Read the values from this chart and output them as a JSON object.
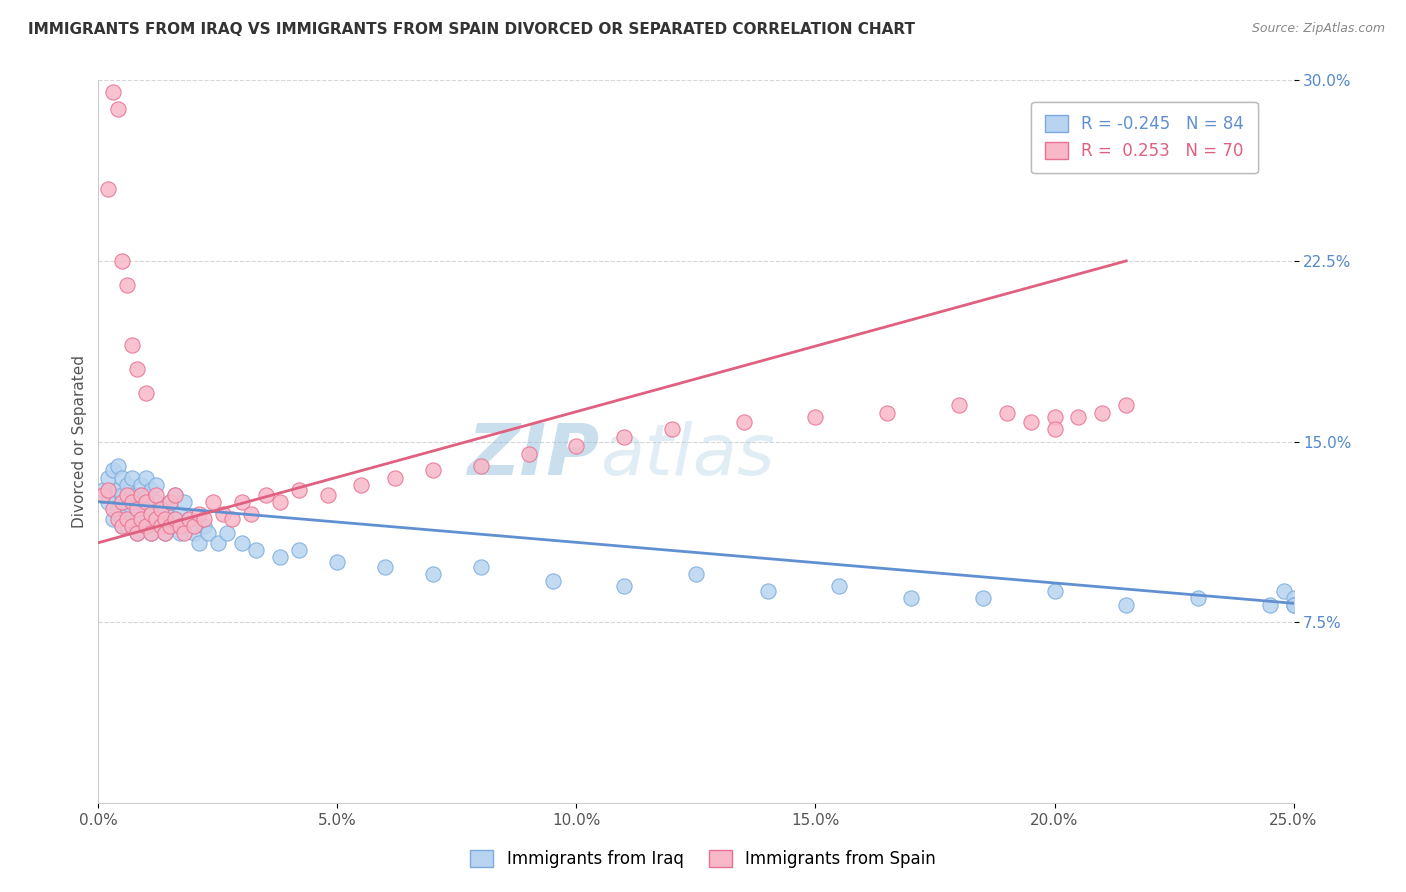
{
  "title": "IMMIGRANTS FROM IRAQ VS IMMIGRANTS FROM SPAIN DIVORCED OR SEPARATED CORRELATION CHART",
  "source": "Source: ZipAtlas.com",
  "ylabel": "Divorced or Separated",
  "xlim": [
    0.0,
    0.25
  ],
  "ylim": [
    0.0,
    0.3
  ],
  "xtick_labels": [
    "0.0%",
    "",
    "",
    "",
    "",
    "5.0%",
    "",
    "",
    "",
    "",
    "10.0%",
    "",
    "",
    "",
    "",
    "15.0%",
    "",
    "",
    "",
    "",
    "20.0%",
    "",
    "",
    "",
    "",
    "25.0%"
  ],
  "xtick_vals": [
    0.0,
    0.05,
    0.1,
    0.15,
    0.2,
    0.25
  ],
  "xtick_display": [
    "0.0%",
    "5.0%",
    "10.0%",
    "15.0%",
    "20.0%",
    "25.0%"
  ],
  "ytick_labels": [
    "7.5%",
    "15.0%",
    "22.5%",
    "30.0%"
  ],
  "ytick_vals": [
    0.075,
    0.15,
    0.225,
    0.3
  ],
  "legend_iraq_r": "-0.245",
  "legend_iraq_n": "84",
  "legend_spain_r": "0.253",
  "legend_spain_n": "70",
  "iraq_color": "#b8d4f0",
  "spain_color": "#f8b8c8",
  "iraq_edge_color": "#7aabdc",
  "spain_edge_color": "#e87090",
  "iraq_line_color": "#6090d0",
  "spain_line_color": "#e06080",
  "watermark_color": "#c8dff0",
  "background_color": "#ffffff",
  "iraq_scatter_x": [
    0.001,
    0.002,
    0.002,
    0.003,
    0.003,
    0.003,
    0.004,
    0.004,
    0.004,
    0.004,
    0.005,
    0.005,
    0.005,
    0.005,
    0.005,
    0.006,
    0.006,
    0.006,
    0.006,
    0.007,
    0.007,
    0.007,
    0.007,
    0.008,
    0.008,
    0.008,
    0.009,
    0.009,
    0.009,
    0.01,
    0.01,
    0.01,
    0.01,
    0.011,
    0.011,
    0.011,
    0.012,
    0.012,
    0.012,
    0.013,
    0.013,
    0.014,
    0.014,
    0.015,
    0.015,
    0.016,
    0.016,
    0.017,
    0.017,
    0.018,
    0.018,
    0.019,
    0.02,
    0.021,
    0.022,
    0.023,
    0.025,
    0.027,
    0.03,
    0.033,
    0.038,
    0.042,
    0.05,
    0.06,
    0.07,
    0.08,
    0.095,
    0.11,
    0.125,
    0.14,
    0.155,
    0.17,
    0.185,
    0.2,
    0.215,
    0.23,
    0.245,
    0.248,
    0.25,
    0.25,
    0.255,
    0.25,
    0.252,
    0.253
  ],
  "iraq_scatter_y": [
    0.13,
    0.125,
    0.135,
    0.118,
    0.128,
    0.138,
    0.12,
    0.13,
    0.122,
    0.14,
    0.115,
    0.125,
    0.118,
    0.128,
    0.135,
    0.12,
    0.125,
    0.115,
    0.132,
    0.118,
    0.122,
    0.128,
    0.135,
    0.112,
    0.12,
    0.128,
    0.118,
    0.125,
    0.132,
    0.115,
    0.122,
    0.128,
    0.135,
    0.112,
    0.12,
    0.13,
    0.118,
    0.125,
    0.132,
    0.115,
    0.12,
    0.112,
    0.122,
    0.115,
    0.125,
    0.118,
    0.128,
    0.112,
    0.12,
    0.115,
    0.125,
    0.118,
    0.112,
    0.108,
    0.115,
    0.112,
    0.108,
    0.112,
    0.108,
    0.105,
    0.102,
    0.105,
    0.1,
    0.098,
    0.095,
    0.098,
    0.092,
    0.09,
    0.095,
    0.088,
    0.09,
    0.085,
    0.085,
    0.088,
    0.082,
    0.085,
    0.082,
    0.088,
    0.085,
    0.082,
    0.082,
    0.082,
    0.082,
    0.085
  ],
  "spain_scatter_x": [
    0.001,
    0.002,
    0.002,
    0.003,
    0.003,
    0.004,
    0.004,
    0.005,
    0.005,
    0.005,
    0.006,
    0.006,
    0.006,
    0.007,
    0.007,
    0.007,
    0.008,
    0.008,
    0.008,
    0.009,
    0.009,
    0.01,
    0.01,
    0.01,
    0.011,
    0.011,
    0.012,
    0.012,
    0.013,
    0.013,
    0.014,
    0.014,
    0.015,
    0.015,
    0.016,
    0.016,
    0.017,
    0.018,
    0.019,
    0.02,
    0.021,
    0.022,
    0.024,
    0.026,
    0.028,
    0.03,
    0.032,
    0.035,
    0.038,
    0.042,
    0.048,
    0.055,
    0.062,
    0.07,
    0.08,
    0.09,
    0.1,
    0.11,
    0.12,
    0.135,
    0.15,
    0.165,
    0.18,
    0.19,
    0.195,
    0.2,
    0.2,
    0.205,
    0.21,
    0.215
  ],
  "spain_scatter_y": [
    0.128,
    0.13,
    0.255,
    0.122,
    0.295,
    0.118,
    0.288,
    0.115,
    0.125,
    0.225,
    0.118,
    0.128,
    0.215,
    0.115,
    0.125,
    0.19,
    0.112,
    0.122,
    0.18,
    0.118,
    0.128,
    0.115,
    0.125,
    0.17,
    0.112,
    0.12,
    0.118,
    0.128,
    0.115,
    0.122,
    0.112,
    0.118,
    0.115,
    0.125,
    0.118,
    0.128,
    0.115,
    0.112,
    0.118,
    0.115,
    0.12,
    0.118,
    0.125,
    0.12,
    0.118,
    0.125,
    0.12,
    0.128,
    0.125,
    0.13,
    0.128,
    0.132,
    0.135,
    0.138,
    0.14,
    0.145,
    0.148,
    0.152,
    0.155,
    0.158,
    0.16,
    0.162,
    0.165,
    0.162,
    0.158,
    0.16,
    0.155,
    0.16,
    0.162,
    0.165
  ],
  "iraq_line_x0": 0.0,
  "iraq_line_x1": 0.255,
  "iraq_line_y0": 0.125,
  "iraq_line_y1": 0.082,
  "spain_line_x0": 0.0,
  "spain_line_x1": 0.215,
  "spain_line_y0": 0.108,
  "spain_line_y1": 0.225
}
